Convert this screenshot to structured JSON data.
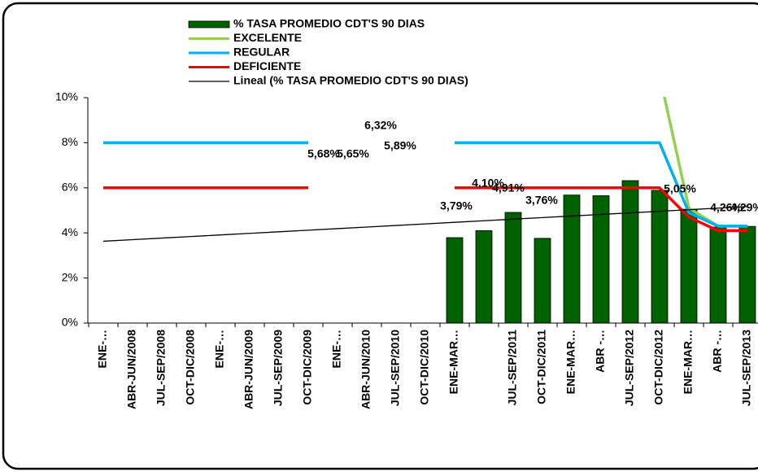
{
  "chart_data": {
    "type": "bar",
    "categories": [
      "ENE-…",
      "ABR-JUN/2008",
      "JUL-SEP/2008",
      "OCT-DIC/2008",
      "ENE-…",
      "ABR-JUN/2009",
      "JUL-SEP/2009",
      "OCT-DIC/2009",
      "ENE-…",
      "ABR-JUN/2010",
      "JUL-SEP/2010",
      "OCT-DIC/2010",
      "ENE-MAR…",
      null,
      "JUL-SEP/2011",
      "OCT-DIC/2011",
      "ENE-MAR…",
      "ABR -…",
      "JUL-SEP/2012",
      "OCT-DIC/2012",
      "ENE-MAR…",
      "ABR -…",
      "JUL-SEP/2013"
    ],
    "series": [
      {
        "name": "% TASA PROMEDIO CDT'S 90 DIAS",
        "type": "bar",
        "color": "#006100",
        "values": [
          null,
          null,
          null,
          null,
          null,
          null,
          null,
          null,
          null,
          null,
          null,
          null,
          3.79,
          4.1,
          4.91,
          3.76,
          5.68,
          5.65,
          6.32,
          5.89,
          5.05,
          4.26,
          4.29
        ],
        "value_labels": [
          null,
          null,
          null,
          null,
          null,
          null,
          null,
          null,
          null,
          null,
          null,
          null,
          "3,79%",
          "4,10%",
          "4,91%",
          "3,76%",
          "5,68%",
          "5,65%",
          "6,32%",
          "5,89%",
          "5,05%",
          "4,26%",
          "4,29%"
        ]
      },
      {
        "name": "EXCELENTE",
        "type": "line",
        "color": "#92d050",
        "values": [
          null,
          null,
          null,
          null,
          null,
          null,
          null,
          null,
          null,
          null,
          null,
          null,
          null,
          null,
          null,
          null,
          null,
          null,
          null,
          11,
          5.1,
          4.3,
          4.3
        ]
      },
      {
        "name": "REGULAR",
        "type": "line",
        "color": "#00b0f0",
        "values": [
          8,
          8,
          8,
          8,
          8,
          8,
          8,
          8,
          null,
          null,
          null,
          null,
          8,
          8,
          8,
          8,
          8,
          8,
          8,
          8,
          4.9,
          4.3,
          4.3
        ]
      },
      {
        "name": "DEFICIENTE",
        "type": "line",
        "color": "#ff0000",
        "values": [
          6,
          6,
          6,
          6,
          6,
          6,
          6,
          6,
          null,
          null,
          null,
          null,
          6,
          6,
          6,
          6,
          6,
          6,
          6,
          6,
          4.7,
          4.1,
          4.1
        ]
      },
      {
        "name": "Lineal (% TASA PROMEDIO CDT'S 90 DIAS)",
        "type": "line",
        "color": "#000000",
        "thin": true,
        "values": [
          3.63,
          3.7,
          3.77,
          3.84,
          3.91,
          3.98,
          4.05,
          4.12,
          4.19,
          4.26,
          4.33,
          4.4,
          4.47,
          4.54,
          4.61,
          4.68,
          4.75,
          4.82,
          4.89,
          4.96,
          5.03,
          5.1,
          5.17
        ]
      }
    ],
    "ylim": [
      0,
      10
    ],
    "yticks": [
      {
        "value": 0,
        "label": "0%"
      },
      {
        "value": 2,
        "label": "2%"
      },
      {
        "value": 4,
        "label": "4%"
      },
      {
        "value": 6,
        "label": "6%"
      },
      {
        "value": 8,
        "label": "8%"
      },
      {
        "value": 10,
        "label": "10%"
      }
    ],
    "legend": "top"
  }
}
